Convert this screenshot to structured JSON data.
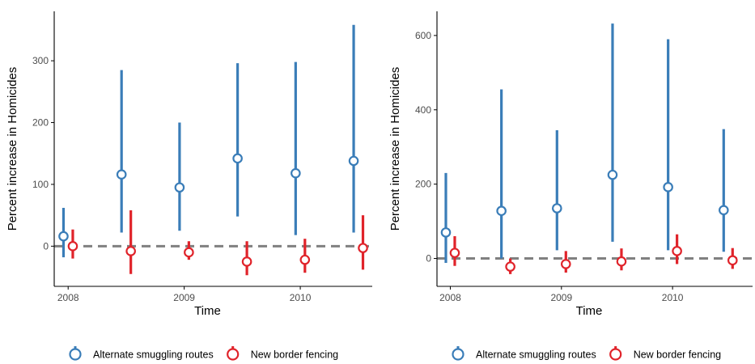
{
  "colors": {
    "alternate": "#3a7db8",
    "fencing": "#e0232a",
    "axis": "#000000",
    "tick_text": "#4d4d4d",
    "zero_line": "#808080"
  },
  "chart_data": [
    {
      "type": "scatter",
      "subtype": "point-range",
      "xlabel": "Time",
      "ylabel": "Percent increase in Homicides",
      "xlim": [
        2007.88,
        2010.62
      ],
      "ylim": [
        -65,
        380
      ],
      "x_ticks": [
        2008,
        2009,
        2010
      ],
      "x_tick_labels": [
        "2008",
        "2009",
        "2010"
      ],
      "y_ticks": [
        0,
        100,
        200,
        300
      ],
      "y_tick_labels": [
        "0",
        "100",
        "200",
        "300"
      ],
      "reference_line": {
        "y": 0,
        "style": "dashed"
      },
      "grid": false,
      "legend_position": "bottom",
      "series": [
        {
          "name": "Alternate smuggling routes",
          "color_key": "alternate",
          "points": [
            {
              "x": 2007.96,
              "y": 16,
              "low": -18,
              "high": 62
            },
            {
              "x": 2008.46,
              "y": 116,
              "low": 22,
              "high": 285
            },
            {
              "x": 2008.96,
              "y": 95,
              "low": 25,
              "high": 200
            },
            {
              "x": 2009.46,
              "y": 142,
              "low": 48,
              "high": 296
            },
            {
              "x": 2009.96,
              "y": 118,
              "low": 18,
              "high": 298
            },
            {
              "x": 2010.46,
              "y": 138,
              "low": 22,
              "high": 358
            }
          ]
        },
        {
          "name": "New border fencing",
          "color_key": "fencing",
          "points": [
            {
              "x": 2008.04,
              "y": 0,
              "low": -20,
              "high": 27
            },
            {
              "x": 2008.54,
              "y": -8,
              "low": -45,
              "high": 58
            },
            {
              "x": 2009.04,
              "y": -10,
              "low": -22,
              "high": 8
            },
            {
              "x": 2009.54,
              "y": -25,
              "low": -47,
              "high": 8
            },
            {
              "x": 2010.04,
              "y": -22,
              "low": -43,
              "high": 12
            },
            {
              "x": 2010.54,
              "y": -3,
              "low": -38,
              "high": 50
            }
          ]
        }
      ]
    },
    {
      "type": "scatter",
      "subtype": "point-range",
      "xlabel": "Time",
      "ylabel": "Percent increase in Homicides",
      "xlim": [
        2007.88,
        2010.72
      ],
      "ylim": [
        -75,
        665
      ],
      "x_ticks": [
        2008,
        2009,
        2010
      ],
      "x_tick_labels": [
        "2008",
        "2009",
        "2010"
      ],
      "y_ticks": [
        0,
        200,
        400,
        600
      ],
      "y_tick_labels": [
        "0",
        "200",
        "400",
        "600"
      ],
      "reference_line": {
        "y": 0,
        "style": "dashed"
      },
      "grid": false,
      "legend_position": "bottom",
      "series": [
        {
          "name": "Alternate smuggling routes",
          "color_key": "alternate",
          "points": [
            {
              "x": 2007.96,
              "y": 70,
              "low": -12,
              "high": 230
            },
            {
              "x": 2008.46,
              "y": 128,
              "low": 0,
              "high": 455
            },
            {
              "x": 2008.96,
              "y": 135,
              "low": 22,
              "high": 345
            },
            {
              "x": 2009.46,
              "y": 225,
              "low": 45,
              "high": 632
            },
            {
              "x": 2009.96,
              "y": 192,
              "low": 22,
              "high": 590
            },
            {
              "x": 2010.46,
              "y": 130,
              "low": 18,
              "high": 348
            }
          ]
        },
        {
          "name": "New border fencing",
          "color_key": "fencing",
          "points": [
            {
              "x": 2008.04,
              "y": 15,
              "low": -20,
              "high": 60
            },
            {
              "x": 2008.54,
              "y": -22,
              "low": -42,
              "high": 0
            },
            {
              "x": 2009.04,
              "y": -15,
              "low": -38,
              "high": 20
            },
            {
              "x": 2009.54,
              "y": -8,
              "low": -32,
              "high": 27
            },
            {
              "x": 2010.04,
              "y": 20,
              "low": -15,
              "high": 65
            },
            {
              "x": 2010.54,
              "y": -5,
              "low": -28,
              "high": 28
            }
          ]
        }
      ]
    }
  ]
}
